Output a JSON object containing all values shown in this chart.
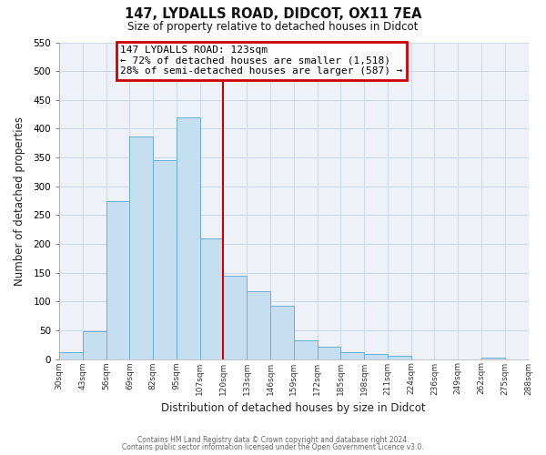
{
  "title": "147, LYDALLS ROAD, DIDCOT, OX11 7EA",
  "subtitle": "Size of property relative to detached houses in Didcot",
  "xlabel": "Distribution of detached houses by size in Didcot",
  "ylabel": "Number of detached properties",
  "bar_labels": [
    "30sqm",
    "43sqm",
    "56sqm",
    "69sqm",
    "82sqm",
    "95sqm",
    "107sqm",
    "120sqm",
    "133sqm",
    "146sqm",
    "159sqm",
    "172sqm",
    "185sqm",
    "198sqm",
    "211sqm",
    "224sqm",
    "236sqm",
    "249sqm",
    "262sqm",
    "275sqm",
    "288sqm"
  ],
  "bar_heights": [
    12,
    48,
    275,
    387,
    345,
    420,
    210,
    145,
    118,
    93,
    32,
    22,
    12,
    8,
    5,
    0,
    0,
    0,
    3,
    0
  ],
  "bar_color": "#c5dff0",
  "bar_edge_color": "#6aaed6",
  "vline_color": "#cc0000",
  "annotation_title": "147 LYDALLS ROAD: 123sqm",
  "annotation_line1": "← 72% of detached houses are smaller (1,518)",
  "annotation_line2": "28% of semi-detached houses are larger (587) →",
  "annotation_box_color": "#ffffff",
  "annotation_box_edge": "#cc0000",
  "ylim": [
    0,
    550
  ],
  "yticks": [
    0,
    50,
    100,
    150,
    200,
    250,
    300,
    350,
    400,
    450,
    500,
    550
  ],
  "footer1": "Contains HM Land Registry data © Crown copyright and database right 2024.",
  "footer2": "Contains public sector information licensed under the Open Government Licence v3.0.",
  "bg_color": "#ffffff",
  "grid_color": "#cdd8e8",
  "plot_bg_color": "#eef2f8"
}
